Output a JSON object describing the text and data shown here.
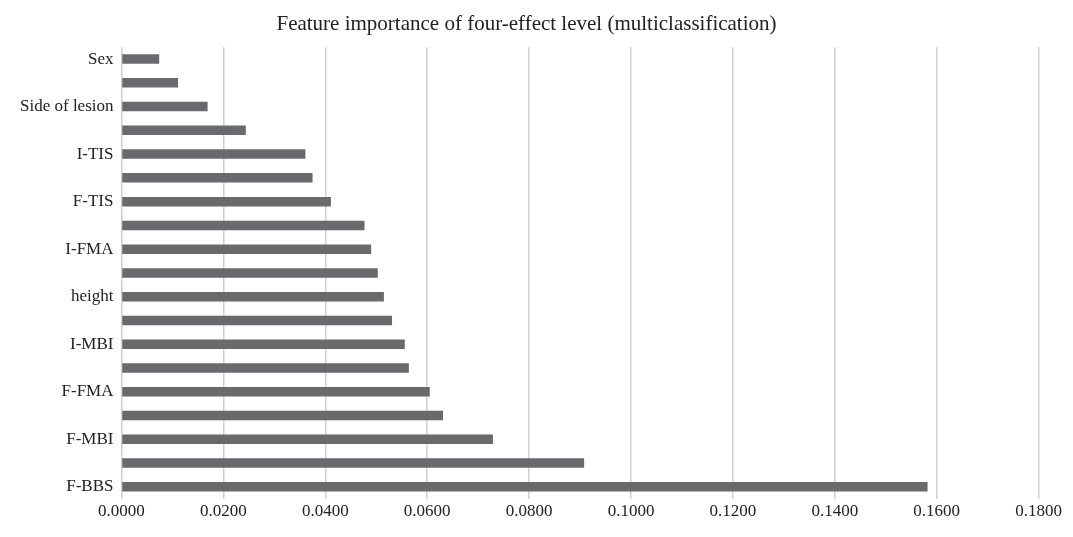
{
  "chart_data": {
    "type": "bar",
    "orientation": "horizontal",
    "title": "Feature importance of four-effect level (multiclassification)",
    "categories": [
      "Sex",
      null,
      "Side of lesion",
      null,
      "I-TIS",
      null,
      "F-TIS",
      null,
      "I-FMA",
      null,
      "height",
      null,
      "I-MBI",
      null,
      "F-FMA",
      null,
      "F-MBI",
      null,
      "F-BBS"
    ],
    "values": [
      0.0074,
      0.0111,
      0.0169,
      0.0244,
      0.0361,
      0.0375,
      0.0411,
      0.0477,
      0.049,
      0.0503,
      0.0515,
      0.0531,
      0.0556,
      0.0564,
      0.0605,
      0.0631,
      0.0729,
      0.0908,
      0.1582
    ],
    "color": "#6a6a6c",
    "xlim": [
      0,
      0.18
    ],
    "xticks": [
      {
        "value": 0,
        "label": "0.0000"
      },
      {
        "value": 0.02,
        "label": "0.0200"
      },
      {
        "value": 0.04,
        "label": "0.0400"
      },
      {
        "value": 0.06,
        "label": "0.0600"
      },
      {
        "value": 0.08,
        "label": "0.0800"
      },
      {
        "value": 0.1,
        "label": "0.1000"
      },
      {
        "value": 0.12,
        "label": "0.1200"
      },
      {
        "value": 0.14,
        "label": "0.1400"
      },
      {
        "value": 0.16,
        "label": "0.1600"
      },
      {
        "value": 0.18,
        "label": "0.1800"
      }
    ],
    "grid": "x",
    "legend": false
  }
}
